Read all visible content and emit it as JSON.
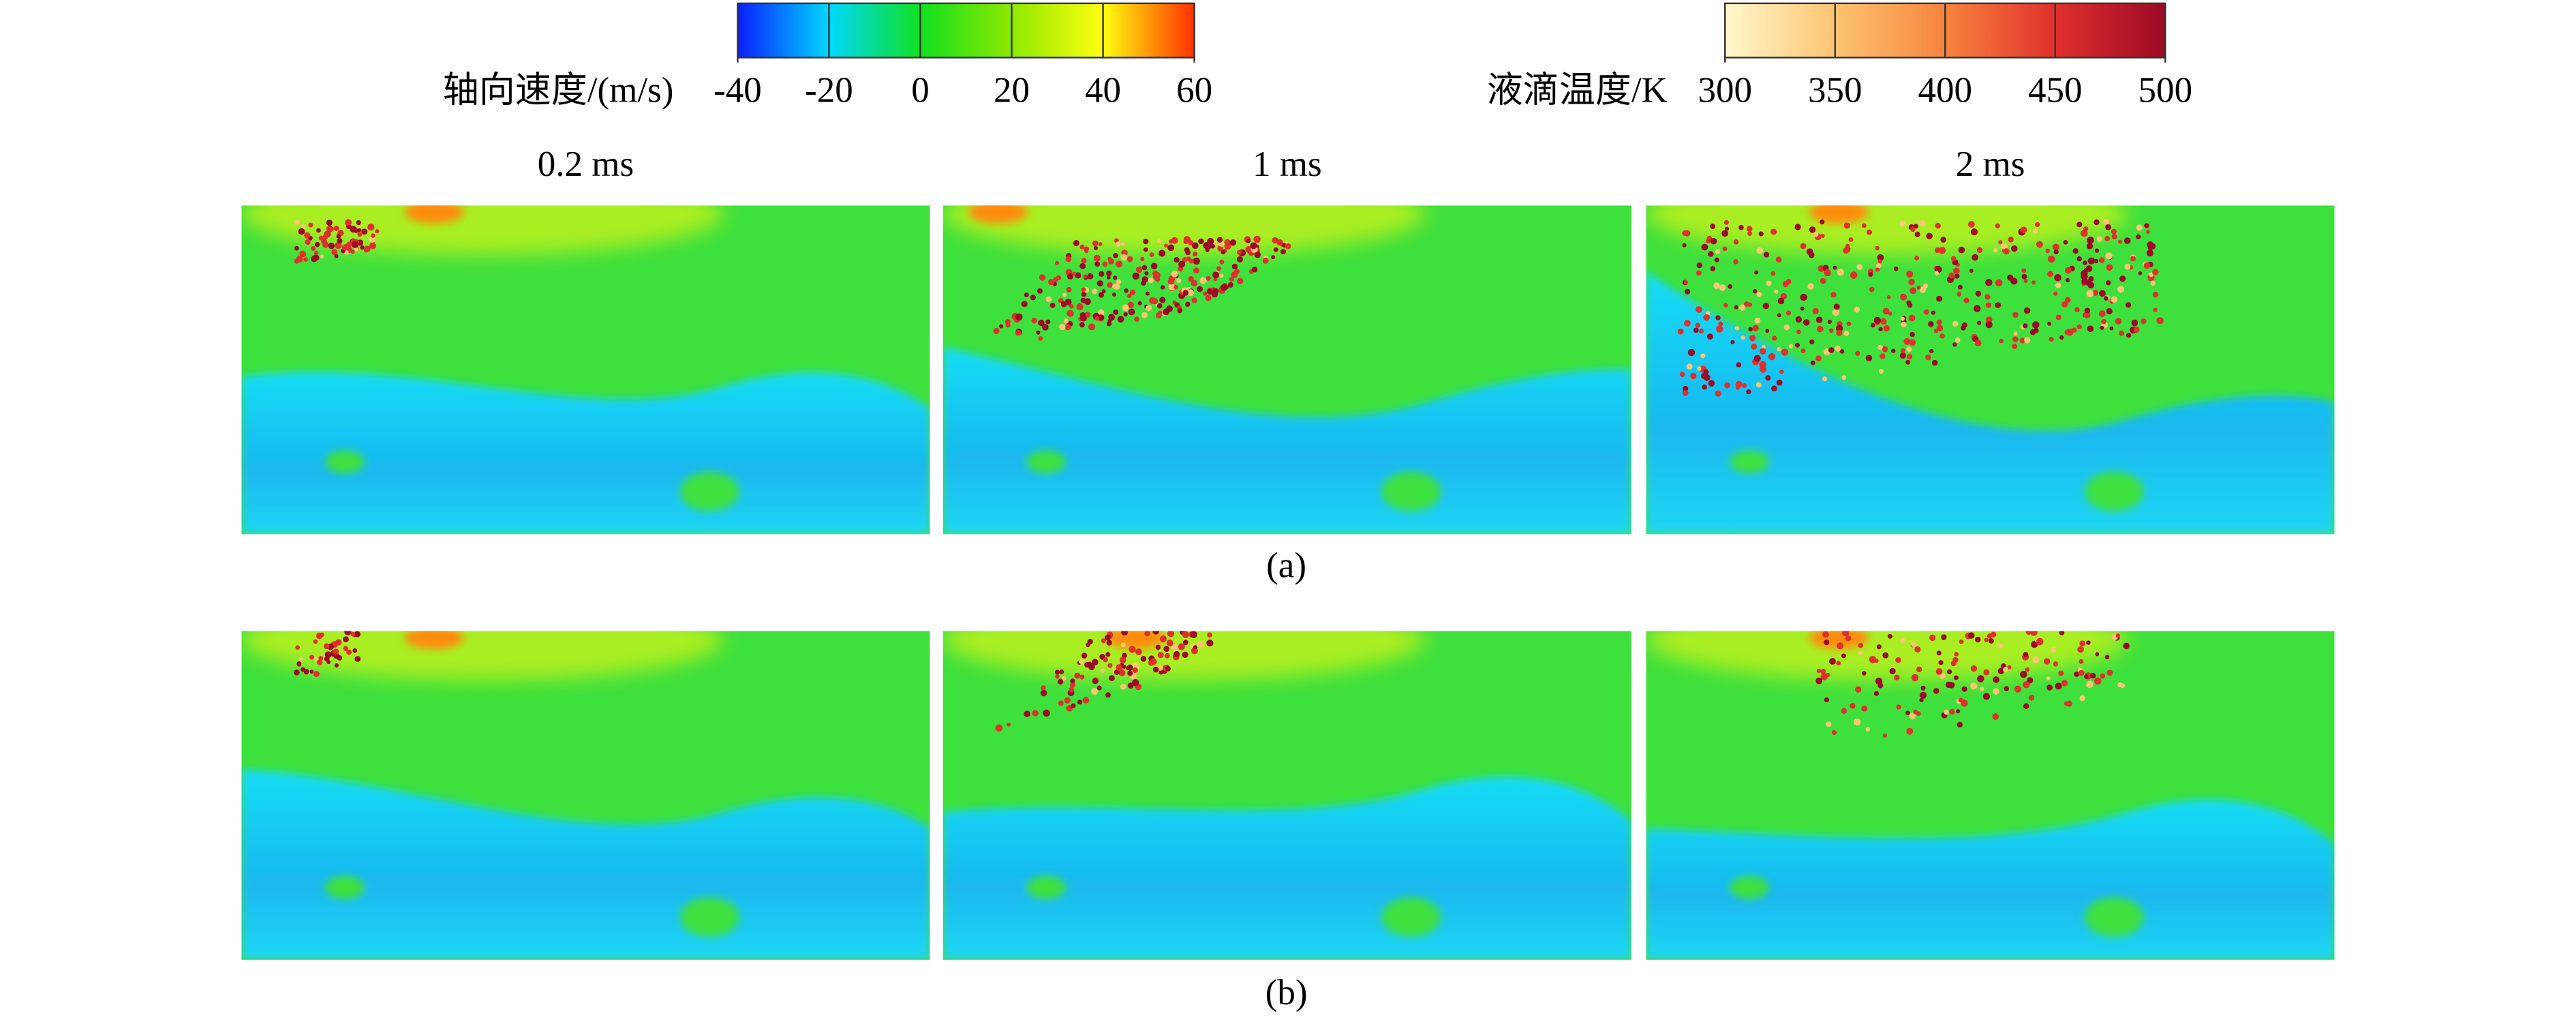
{
  "colorbars": [
    {
      "label": "轴向速度/(m/s)",
      "ticks": [
        -40,
        -20,
        0,
        20,
        40,
        60
      ],
      "colors": [
        "#0a1eff",
        "#00d8ff",
        "#10e020",
        "#8ee800",
        "#ffff10",
        "#ff3000"
      ]
    },
    {
      "label": "液滴温度/K",
      "ticks": [
        300,
        350,
        400,
        450,
        500
      ],
      "colors": [
        "#fff8cc",
        "#fdc472",
        "#f7843e",
        "#e0302c",
        "#9c0a26"
      ]
    }
  ],
  "columns": [
    "0.2 ms",
    "1 ms",
    "2 ms"
  ],
  "rows": [
    "(a)",
    "(b)"
  ]
}
